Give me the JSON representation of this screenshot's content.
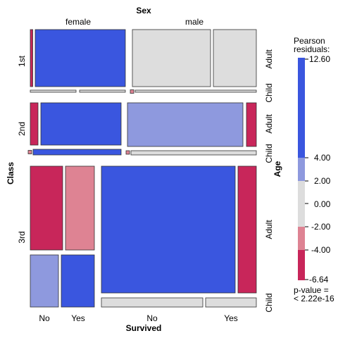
{
  "chart_data": {
    "type": "mosaic",
    "title": "",
    "variables": {
      "horizontal": "Sex",
      "rows": "Class",
      "within_rows": "Age",
      "within_columns": "Survived"
    },
    "sex_levels": [
      "female",
      "male"
    ],
    "class_levels": [
      "1st",
      "2nd",
      "3rd"
    ],
    "age_levels": [
      "Adult",
      "Child"
    ],
    "survived_levels": [
      "No",
      "Yes"
    ],
    "cells": [
      {
        "class": "1st",
        "sex": "female",
        "age": "Adult",
        "survived": "No",
        "fill": "#C8265A"
      },
      {
        "class": "1st",
        "sex": "female",
        "age": "Adult",
        "survived": "Yes",
        "fill": "#3A56DF"
      },
      {
        "class": "1st",
        "sex": "male",
        "age": "Adult",
        "survived": "No",
        "fill": "#DDDDDD"
      },
      {
        "class": "1st",
        "sex": "male",
        "age": "Adult",
        "survived": "Yes",
        "fill": "#DDDDDD"
      },
      {
        "class": "1st",
        "sex": "female",
        "age": "Child",
        "survived": "No",
        "fill": "#DDDDDD"
      },
      {
        "class": "1st",
        "sex": "female",
        "age": "Child",
        "survived": "Yes",
        "fill": "#DDDDDD"
      },
      {
        "class": "1st",
        "sex": "male",
        "age": "Child",
        "survived": "No",
        "fill": "#DE8393"
      },
      {
        "class": "1st",
        "sex": "male",
        "age": "Child",
        "survived": "Yes",
        "fill": "#DDDDDD"
      },
      {
        "class": "2nd",
        "sex": "female",
        "age": "Adult",
        "survived": "No",
        "fill": "#C8265A"
      },
      {
        "class": "2nd",
        "sex": "female",
        "age": "Adult",
        "survived": "Yes",
        "fill": "#3A56DF"
      },
      {
        "class": "2nd",
        "sex": "male",
        "age": "Adult",
        "survived": "No",
        "fill": "#8E99DE"
      },
      {
        "class": "2nd",
        "sex": "male",
        "age": "Adult",
        "survived": "Yes",
        "fill": "#C8265A"
      },
      {
        "class": "2nd",
        "sex": "female",
        "age": "Child",
        "survived": "No",
        "fill": "#DE8393"
      },
      {
        "class": "2nd",
        "sex": "female",
        "age": "Child",
        "survived": "Yes",
        "fill": "#3A56DF"
      },
      {
        "class": "2nd",
        "sex": "male",
        "age": "Child",
        "survived": "No",
        "fill": "#DE8393"
      },
      {
        "class": "2nd",
        "sex": "male",
        "age": "Child",
        "survived": "Yes",
        "fill": "#DDDDDD"
      },
      {
        "class": "3rd",
        "sex": "female",
        "age": "Adult",
        "survived": "No",
        "fill": "#C8265A"
      },
      {
        "class": "3rd",
        "sex": "female",
        "age": "Adult",
        "survived": "Yes",
        "fill": "#DE8393"
      },
      {
        "class": "3rd",
        "sex": "male",
        "age": "Adult",
        "survived": "No",
        "fill": "#3A56DF"
      },
      {
        "class": "3rd",
        "sex": "male",
        "age": "Adult",
        "survived": "Yes",
        "fill": "#C8265A"
      },
      {
        "class": "3rd",
        "sex": "female",
        "age": "Child",
        "survived": "No",
        "fill": "#8E99DE"
      },
      {
        "class": "3rd",
        "sex": "female",
        "age": "Child",
        "survived": "Yes",
        "fill": "#3A56DF"
      },
      {
        "class": "3rd",
        "sex": "male",
        "age": "Child",
        "survived": "No",
        "fill": "#DDDDDD"
      },
      {
        "class": "3rd",
        "sex": "male",
        "age": "Child",
        "survived": "Yes",
        "fill": "#DDDDDD"
      }
    ],
    "legend": {
      "title_line1": "Pearson",
      "title_line2": "residuals:",
      "max_label": "12.60",
      "min_label": "-6.64",
      "tick_labels": [
        "4.00",
        "2.00",
        "0.00",
        "-2.00",
        "-4.00"
      ],
      "bands": [
        {
          "from": 4.0,
          "to": 12.6,
          "fill": "#3A56DF"
        },
        {
          "from": 2.0,
          "to": 4.0,
          "fill": "#8E99DE"
        },
        {
          "from": -2.0,
          "to": 2.0,
          "fill": "#DDDDDD"
        },
        {
          "from": -4.0,
          "to": -2.0,
          "fill": "#DE8393"
        },
        {
          "from": -6.64,
          "to": -4.0,
          "fill": "#C8265A"
        }
      ],
      "pvalue_line1": "p-value =",
      "pvalue_line2": "< 2.22e-16"
    }
  }
}
